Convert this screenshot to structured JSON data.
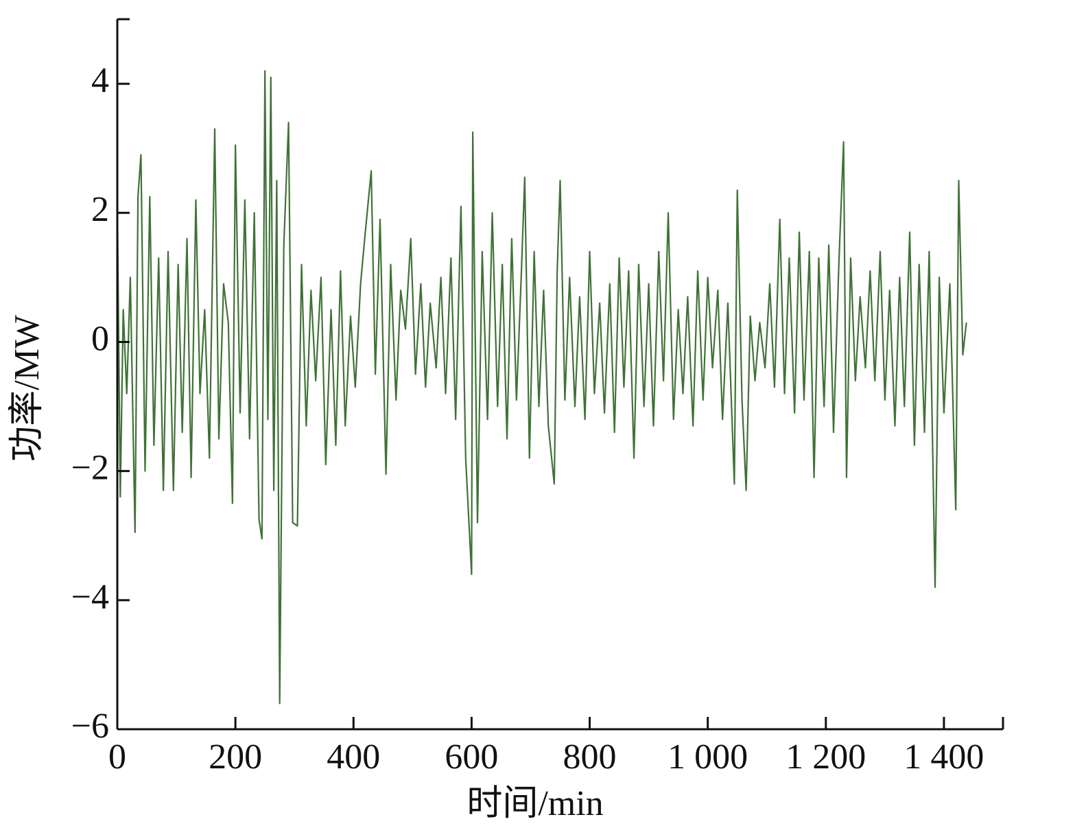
{
  "chart_data": {
    "type": "line",
    "xlabel": "时间/min",
    "ylabel": "功率/MW",
    "xlim": [
      0,
      1500
    ],
    "ylim": [
      -6,
      5
    ],
    "xticks": [
      0,
      200,
      400,
      600,
      800,
      {
        "value": 1000,
        "label": "1 000"
      },
      {
        "value": 1200,
        "label": "1 200"
      },
      {
        "value": 1400,
        "label": "1 400"
      }
    ],
    "yticks": [
      {
        "value": -6,
        "label": "−6"
      },
      {
        "value": -4,
        "label": "−4"
      },
      {
        "value": -2,
        "label": "−2"
      },
      0,
      2,
      4
    ],
    "grid": false,
    "x": [
      0,
      5,
      10,
      16,
      22,
      30,
      35,
      40,
      47,
      55,
      62,
      70,
      78,
      86,
      95,
      103,
      110,
      118,
      125,
      133,
      140,
      148,
      156,
      165,
      172,
      180,
      188,
      195,
      200,
      208,
      216,
      224,
      232,
      240,
      245,
      250,
      255,
      260,
      265,
      270,
      275,
      282,
      290,
      297,
      305,
      312,
      320,
      328,
      336,
      345,
      353,
      362,
      370,
      378,
      386,
      395,
      403,
      412,
      420,
      430,
      437,
      445,
      455,
      463,
      472,
      480,
      488,
      497,
      505,
      514,
      522,
      530,
      540,
      548,
      556,
      565,
      573,
      582,
      590,
      600,
      602,
      610,
      618,
      627,
      635,
      644,
      652,
      660,
      668,
      676,
      684,
      690,
      698,
      706,
      714,
      722,
      730,
      740,
      745,
      750,
      758,
      766,
      775,
      783,
      792,
      800,
      808,
      817,
      825,
      834,
      842,
      850,
      858,
      866,
      875,
      883,
      892,
      900,
      908,
      917,
      925,
      933,
      942,
      950,
      958,
      966,
      975,
      983,
      992,
      1000,
      1008,
      1017,
      1025,
      1034,
      1045,
      1050,
      1058,
      1065,
      1072,
      1080,
      1088,
      1097,
      1105,
      1113,
      1122,
      1130,
      1138,
      1147,
      1155,
      1163,
      1172,
      1180,
      1188,
      1197,
      1205,
      1213,
      1222,
      1230,
      1235,
      1242,
      1250,
      1258,
      1267,
      1275,
      1283,
      1292,
      1300,
      1308,
      1317,
      1325,
      1333,
      1342,
      1350,
      1358,
      1367,
      1375,
      1385,
      1392,
      1400,
      1410,
      1420,
      1425,
      1432,
      1438
    ],
    "series": [
      {
        "color": "#3f7236",
        "values": [
          2.2,
          -2.4,
          0.5,
          -0.8,
          1.0,
          -2.95,
          2.25,
          2.9,
          -2.0,
          2.25,
          -1.6,
          1.3,
          -2.3,
          1.4,
          -2.3,
          1.2,
          -1.4,
          1.6,
          -2.1,
          2.2,
          -0.8,
          0.5,
          -1.8,
          3.3,
          -1.5,
          0.9,
          0.3,
          -2.5,
          3.05,
          -1.1,
          2.2,
          -1.5,
          2.0,
          -2.75,
          -3.05,
          4.2,
          -1.2,
          4.1,
          -2.3,
          2.5,
          -5.6,
          1.5,
          3.4,
          -2.8,
          -2.85,
          1.2,
          -1.3,
          0.8,
          -0.6,
          1.0,
          -1.9,
          0.5,
          -1.6,
          1.1,
          -1.3,
          0.4,
          -0.7,
          0.9,
          1.7,
          2.65,
          -0.5,
          1.9,
          -2.05,
          1.2,
          -0.9,
          0.8,
          0.2,
          1.6,
          -0.5,
          0.9,
          -0.7,
          0.6,
          -0.4,
          1.0,
          -0.8,
          1.3,
          -1.2,
          2.1,
          -1.8,
          -3.6,
          3.25,
          -2.8,
          1.4,
          -1.2,
          2.0,
          -1.0,
          1.2,
          -1.5,
          1.6,
          -0.9,
          1.0,
          2.55,
          -1.8,
          1.4,
          -1.0,
          0.8,
          -1.3,
          -2.2,
          1.1,
          2.5,
          -0.9,
          1.0,
          -1.0,
          0.7,
          -1.2,
          1.4,
          -0.8,
          0.6,
          -1.1,
          0.9,
          -1.4,
          1.3,
          -0.7,
          1.1,
          -1.8,
          1.2,
          -1.0,
          0.9,
          -1.3,
          1.4,
          -0.6,
          2.0,
          -1.2,
          0.5,
          -0.8,
          0.7,
          -1.3,
          1.1,
          -0.9,
          1.0,
          -0.4,
          0.8,
          -1.2,
          0.6,
          -2.2,
          2.35,
          -0.9,
          -2.3,
          0.4,
          -0.6,
          0.3,
          -0.4,
          0.9,
          -0.7,
          1.9,
          -0.8,
          1.3,
          -1.1,
          1.7,
          -0.9,
          1.4,
          -2.1,
          1.3,
          -1.0,
          1.5,
          -1.4,
          1.2,
          3.1,
          -2.1,
          1.3,
          -0.6,
          0.7,
          -0.4,
          1.1,
          -0.6,
          1.4,
          -0.9,
          0.8,
          -1.3,
          1.0,
          -1.0,
          1.7,
          -1.6,
          1.2,
          -1.4,
          1.4,
          -3.8,
          1.0,
          -1.1,
          0.9,
          -2.6,
          2.5,
          -0.2,
          0.3
        ]
      }
    ]
  }
}
